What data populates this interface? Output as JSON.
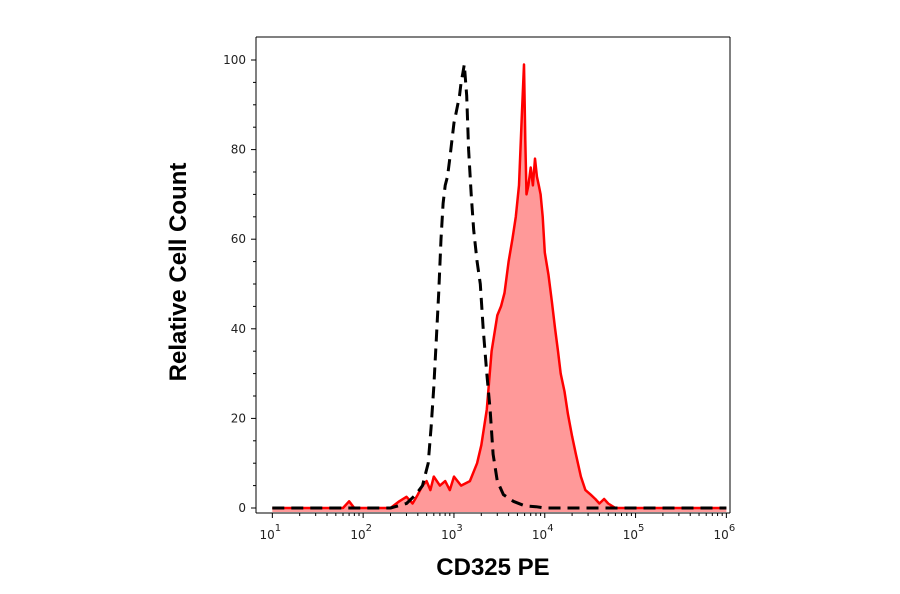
{
  "chart_data": {
    "type": "area",
    "xlabel": "CD325 PE",
    "ylabel": "Relative Cell Count",
    "x_scale": "log",
    "xlim": [
      10,
      1000000
    ],
    "ylim": [
      0,
      100
    ],
    "x_ticks": [
      {
        "value": 10,
        "base": "10",
        "exp": "1"
      },
      {
        "value": 100,
        "base": "10",
        "exp": "2"
      },
      {
        "value": 1000,
        "base": "10",
        "exp": "3"
      },
      {
        "value": 10000,
        "base": "10",
        "exp": "4"
      },
      {
        "value": 100000,
        "base": "10",
        "exp": "5"
      },
      {
        "value": 1000000,
        "base": "10",
        "exp": "6"
      }
    ],
    "y_ticks": [
      {
        "value": 0,
        "label": "0"
      },
      {
        "value": 20,
        "label": "20"
      },
      {
        "value": 40,
        "label": "40"
      },
      {
        "value": 60,
        "label": "60"
      },
      {
        "value": 80,
        "label": "80"
      },
      {
        "value": 100,
        "label": "100"
      }
    ],
    "grid": false,
    "series": [
      {
        "style": "dashed",
        "color": "#000000",
        "fill": "none",
        "x": [
          10,
          200,
          300,
          380,
          450,
          520,
          560,
          600,
          640,
          680,
          720,
          760,
          800,
          850,
          900,
          950,
          1000,
          1050,
          1100,
          1150,
          1200,
          1250,
          1300,
          1380,
          1450,
          1550,
          1650,
          1800,
          1950,
          2100,
          2300,
          2500,
          2700,
          3000,
          3500,
          4500,
          6000,
          8000,
          10000,
          20000,
          1000000
        ],
        "y": [
          0,
          0,
          1,
          3,
          5,
          10,
          18,
          27,
          38,
          48,
          60,
          68,
          72,
          74,
          78,
          82,
          86,
          88,
          90,
          92,
          95,
          97,
          99,
          92,
          80,
          70,
          62,
          55,
          50,
          40,
          30,
          22,
          12,
          6,
          3,
          1.5,
          0.5,
          0.3,
          0,
          0,
          0
        ]
      },
      {
        "style": "solid",
        "color": "#ff0000",
        "fill": "#ff9999",
        "x": [
          10,
          60,
          70,
          80,
          100,
          150,
          200,
          250,
          300,
          350,
          400,
          450,
          500,
          550,
          600,
          700,
          800,
          900,
          1000,
          1200,
          1500,
          1800,
          2000,
          2300,
          2600,
          3000,
          3300,
          3600,
          4000,
          4400,
          4800,
          5200,
          5600,
          5900,
          6100,
          6300,
          6600,
          7000,
          7400,
          7800,
          8200,
          8600,
          9000,
          9500,
          10000,
          11000,
          12000,
          13000,
          14000,
          15000,
          16500,
          18000,
          20000,
          22000,
          25000,
          28000,
          32000,
          36000,
          40000,
          45000,
          50000,
          60000,
          1000000
        ],
        "y": [
          0,
          0,
          1.5,
          0,
          0,
          0,
          0,
          1.5,
          2.5,
          1,
          3,
          5,
          6,
          4,
          7,
          5,
          6,
          4,
          7,
          5,
          6,
          10,
          14,
          22,
          35,
          43,
          45,
          48,
          55,
          60,
          65,
          72,
          88,
          99,
          82,
          70,
          72,
          76,
          72,
          78,
          74,
          72,
          70,
          65,
          57,
          52,
          46,
          40,
          35,
          30,
          26,
          21,
          16,
          12,
          7,
          4,
          3,
          2,
          1,
          2,
          1,
          0,
          0
        ]
      }
    ]
  }
}
